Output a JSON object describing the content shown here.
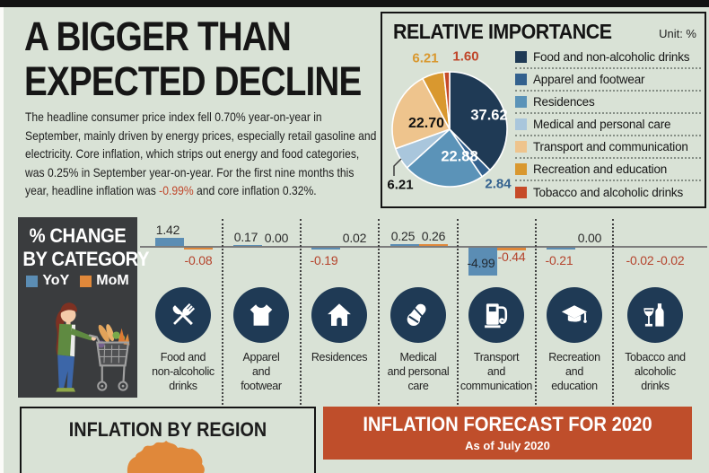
{
  "header": {
    "title_line1": "A BIGGER THAN",
    "title_line2": "EXPECTED DECLINE",
    "paragraph_before": "The headline consumer price index fell 0.70% year-on-year in September, mainly driven by energy prices, especially retail gasoline and electricity. Core inflation, which strips out energy and food categories, was 0.25% in September year-on-year. For the first nine months this year, headline inflation was ",
    "paragraph_highlight": "-0.99%",
    "paragraph_after": " and core inflation 0.32%.",
    "highlight_color": "#c0462a"
  },
  "pie_panel": {
    "title": "RELATIVE IMPORTANCE",
    "unit": "Unit: %"
  },
  "category_chart": {
    "panel_title_line1": "% CHANGE",
    "panel_title_line2": "BY CATEGORY",
    "categories": [
      {
        "id": "food",
        "label": "Food and\nnon-alcoholic\ndrinks",
        "icon": "food-icon",
        "yoy": 1.42,
        "yoy_display": "1.42",
        "mom": -0.08,
        "mom_display": "-0.08"
      },
      {
        "id": "apparel",
        "label": "Apparel\nand\nfootwear",
        "icon": "apparel-icon",
        "yoy": 0.17,
        "yoy_display": "0.17",
        "mom": 0,
        "mom_display": "0.00"
      },
      {
        "id": "residences",
        "label": "Residences",
        "icon": "house-icon",
        "yoy": -0.19,
        "yoy_display": "-0.19",
        "mom": 0.02,
        "mom_display": "0.02"
      },
      {
        "id": "medical",
        "label": "Medical\nand personal\ncare",
        "icon": "pills-icon",
        "yoy": 0.25,
        "yoy_display": "0.25",
        "mom": 0.26,
        "mom_display": "0.26"
      },
      {
        "id": "transport",
        "label": "Transport\nand\ncommunication",
        "icon": "fuel-pump-icon",
        "yoy": -4.99,
        "yoy_display": "-4.99",
        "mom": -0.44,
        "mom_display": "-0.44"
      },
      {
        "id": "recreation",
        "label": "Recreation\nand\neducation",
        "icon": "graduation-cap-icon",
        "yoy": -0.21,
        "yoy_display": "-0.21",
        "mom": 0,
        "mom_display": "0.00"
      },
      {
        "id": "tobacco",
        "label": "Tobacco and\nalcoholic\ndrinks",
        "icon": "wine-bottle-icon",
        "yoy": -0.02,
        "yoy_display": "-0.02",
        "mom": -0.02,
        "mom_display": "-0.02"
      }
    ],
    "negative_text_color": "#b5432c",
    "positive_text_color": "#2b2b2b"
  },
  "region_panel": {
    "title": "INFLATION BY REGION",
    "map_color": "#e0883a"
  },
  "forecast_panel": {
    "title": "INFLATION FORECAST FOR 2020",
    "subtitle": "As of July 2020",
    "bg": "#bf4e2b"
  },
  "chart_data": [
    {
      "type": "pie",
      "title": "RELATIVE IMPORTANCE",
      "unit": "%",
      "start_angle_deg": 0,
      "direction": "clockwise",
      "legend_position": "right",
      "slices": [
        {
          "label": "Food and non-alcoholic drinks",
          "value": 37.62,
          "display": "37.62",
          "color": "#1f3a55"
        },
        {
          "label": "Apparel and footwear",
          "value": 2.84,
          "display": "2.84",
          "color": "#33618e"
        },
        {
          "label": "Residences",
          "value": 22.88,
          "display": "22.88",
          "color": "#5b93b8"
        },
        {
          "label": "Medical and personal care",
          "value": 6.21,
          "display": "6.21",
          "color": "#a9c6dc"
        },
        {
          "label": "Transport and communication",
          "value": 22.7,
          "display": "22.70",
          "color": "#eec48d"
        },
        {
          "label": "Recreation and education",
          "value": 6.21,
          "display": "6.21",
          "color": "#d9982f"
        },
        {
          "label": "Tobacco and alcoholic drinks",
          "value": 1.6,
          "display": "1.60",
          "color": "#c64a28"
        }
      ]
    },
    {
      "type": "bar",
      "title": "% CHANGE BY CATEGORY",
      "unit": "%",
      "baseline": 0,
      "categories": [
        "Food and non-alcoholic drinks",
        "Apparel and footwear",
        "Residences",
        "Medical and personal care",
        "Transport and communication",
        "Recreation and education",
        "Tobacco and alcoholic drinks"
      ],
      "series": [
        {
          "name": "YoY",
          "color": "#5b8db4",
          "values": [
            1.42,
            0.17,
            -0.19,
            0.25,
            -4.99,
            -0.21,
            -0.02
          ]
        },
        {
          "name": "MoM",
          "color": "#e0883a",
          "values": [
            -0.08,
            0.0,
            0.02,
            0.26,
            -0.44,
            0.0,
            -0.02
          ]
        }
      ]
    }
  ]
}
